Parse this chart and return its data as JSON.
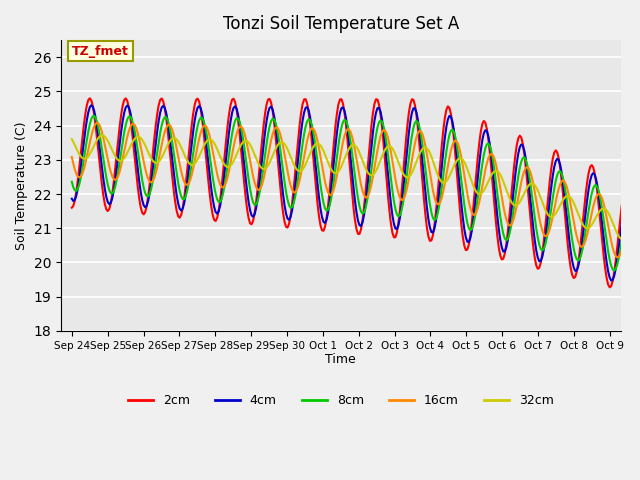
{
  "title": "Tonzi Soil Temperature Set A",
  "xlabel": "Time",
  "ylabel": "Soil Temperature (C)",
  "ylim": [
    18.0,
    26.5
  ],
  "yticks": [
    18.0,
    19.0,
    20.0,
    21.0,
    22.0,
    23.0,
    24.0,
    25.0,
    26.0
  ],
  "colors": {
    "2cm": "#FF0000",
    "4cm": "#0000CC",
    "8cm": "#00CC00",
    "16cm": "#FF8800",
    "32cm": "#CCCC00"
  },
  "legend_label": "TZ_fmet",
  "linewidth": 1.5,
  "x_tick_labels": [
    "Sep 24",
    "Sep 25",
    "Sep 26",
    "Sep 27",
    "Sep 28",
    "Sep 29",
    "Sep 30",
    "Oct 1",
    "Oct 2",
    "Oct 3",
    "Oct 4",
    "Oct 5",
    "Oct 6",
    "Oct 7",
    "Oct 8",
    "Oct 9"
  ]
}
